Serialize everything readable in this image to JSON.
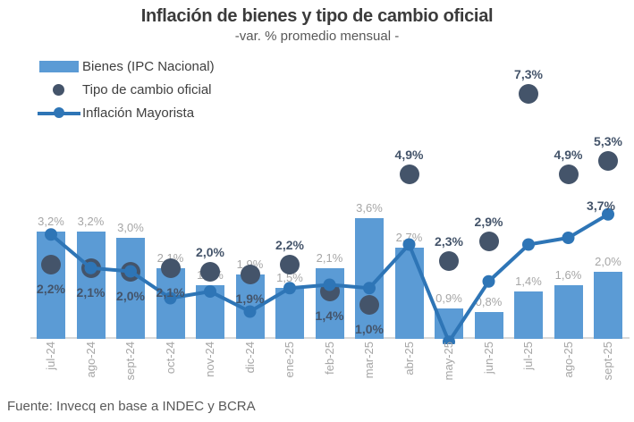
{
  "title": "Inflación de bienes y tipo de cambio oficial",
  "subtitle": "-var. % promedio mensual -",
  "source": "Fuente: Invecq en base a INDEC y BCRA",
  "legend": {
    "items": [
      {
        "label": "Bienes (IPC Nacional)"
      },
      {
        "label": "Tipo de cambio oficial"
      },
      {
        "label": "Inflación Mayorista"
      }
    ]
  },
  "colors": {
    "bar": "#5B9BD5",
    "dot": "#44546A",
    "line": "#2E75B6",
    "axis_line": "#D9D9D9",
    "bar_label": "#A6A6A6",
    "dot_label": "#44546A",
    "line_label": "#44546A",
    "tick_label": "#A6A6A6",
    "title": "#3B3B3B",
    "subtitle": "#595959",
    "source": "#595959",
    "legend_text": "#3F3F3F",
    "background": "#FFFFFF"
  },
  "chart_data": {
    "type": "combo",
    "categories": [
      "jul-24",
      "ago-24",
      "sept-24",
      "oct-24",
      "nov-24",
      "dic-24",
      "ene-25",
      "feb-25",
      "mar-25",
      "abr-25",
      "may-25",
      "jun-25",
      "jul-25",
      "ago-25",
      "sept-25"
    ],
    "series": [
      {
        "name": "Bienes (IPC Nacional)",
        "type": "bar",
        "values": [
          3.2,
          3.2,
          3.0,
          2.1,
          1.6,
          1.9,
          1.5,
          2.1,
          3.6,
          2.7,
          0.9,
          0.8,
          1.4,
          1.6,
          2.0
        ],
        "labels": [
          "3,2%",
          "3,2%",
          "3,0%",
          "2,1%",
          "1,6%",
          "1,9%",
          "1,5%",
          "2,1%",
          "3,6%",
          "2,7%",
          "0,9%",
          "0,8%",
          "1,4%",
          "1,6%",
          "2,0%"
        ]
      },
      {
        "name": "Tipo de cambio oficial",
        "type": "scatter",
        "values": [
          2.2,
          2.1,
          2.0,
          2.1,
          2.0,
          1.9,
          2.2,
          1.4,
          1.0,
          4.9,
          2.3,
          2.9,
          7.3,
          4.9,
          5.3
        ],
        "labels": [
          "2,2%",
          "2,1%",
          "2,0%",
          "2,1%",
          "2,0%",
          "1,9%",
          "2,2%",
          "1,4%",
          "1,0%",
          "4,9%",
          "2,3%",
          "2,9%",
          "7,3%",
          "4,9%",
          "5,3%"
        ],
        "label_positions": [
          "below",
          "below",
          "below",
          "below",
          "above",
          "below",
          "above",
          "below",
          "below",
          "above",
          "above",
          "above",
          "above",
          "above",
          "above"
        ]
      },
      {
        "name": "Inflación Mayorista",
        "type": "line",
        "values": [
          3.1,
          2.1,
          2.0,
          1.2,
          1.4,
          0.8,
          1.5,
          1.6,
          1.5,
          2.8,
          -0.1,
          1.7,
          2.8,
          3.0,
          3.7
        ],
        "labels": [
          null,
          null,
          null,
          null,
          null,
          null,
          null,
          null,
          null,
          null,
          null,
          null,
          null,
          null,
          "3,7%"
        ]
      }
    ],
    "ylim": [
      -0.5,
      8
    ],
    "grid": false,
    "y_axis_visible": false,
    "legend_position": "top-left"
  }
}
